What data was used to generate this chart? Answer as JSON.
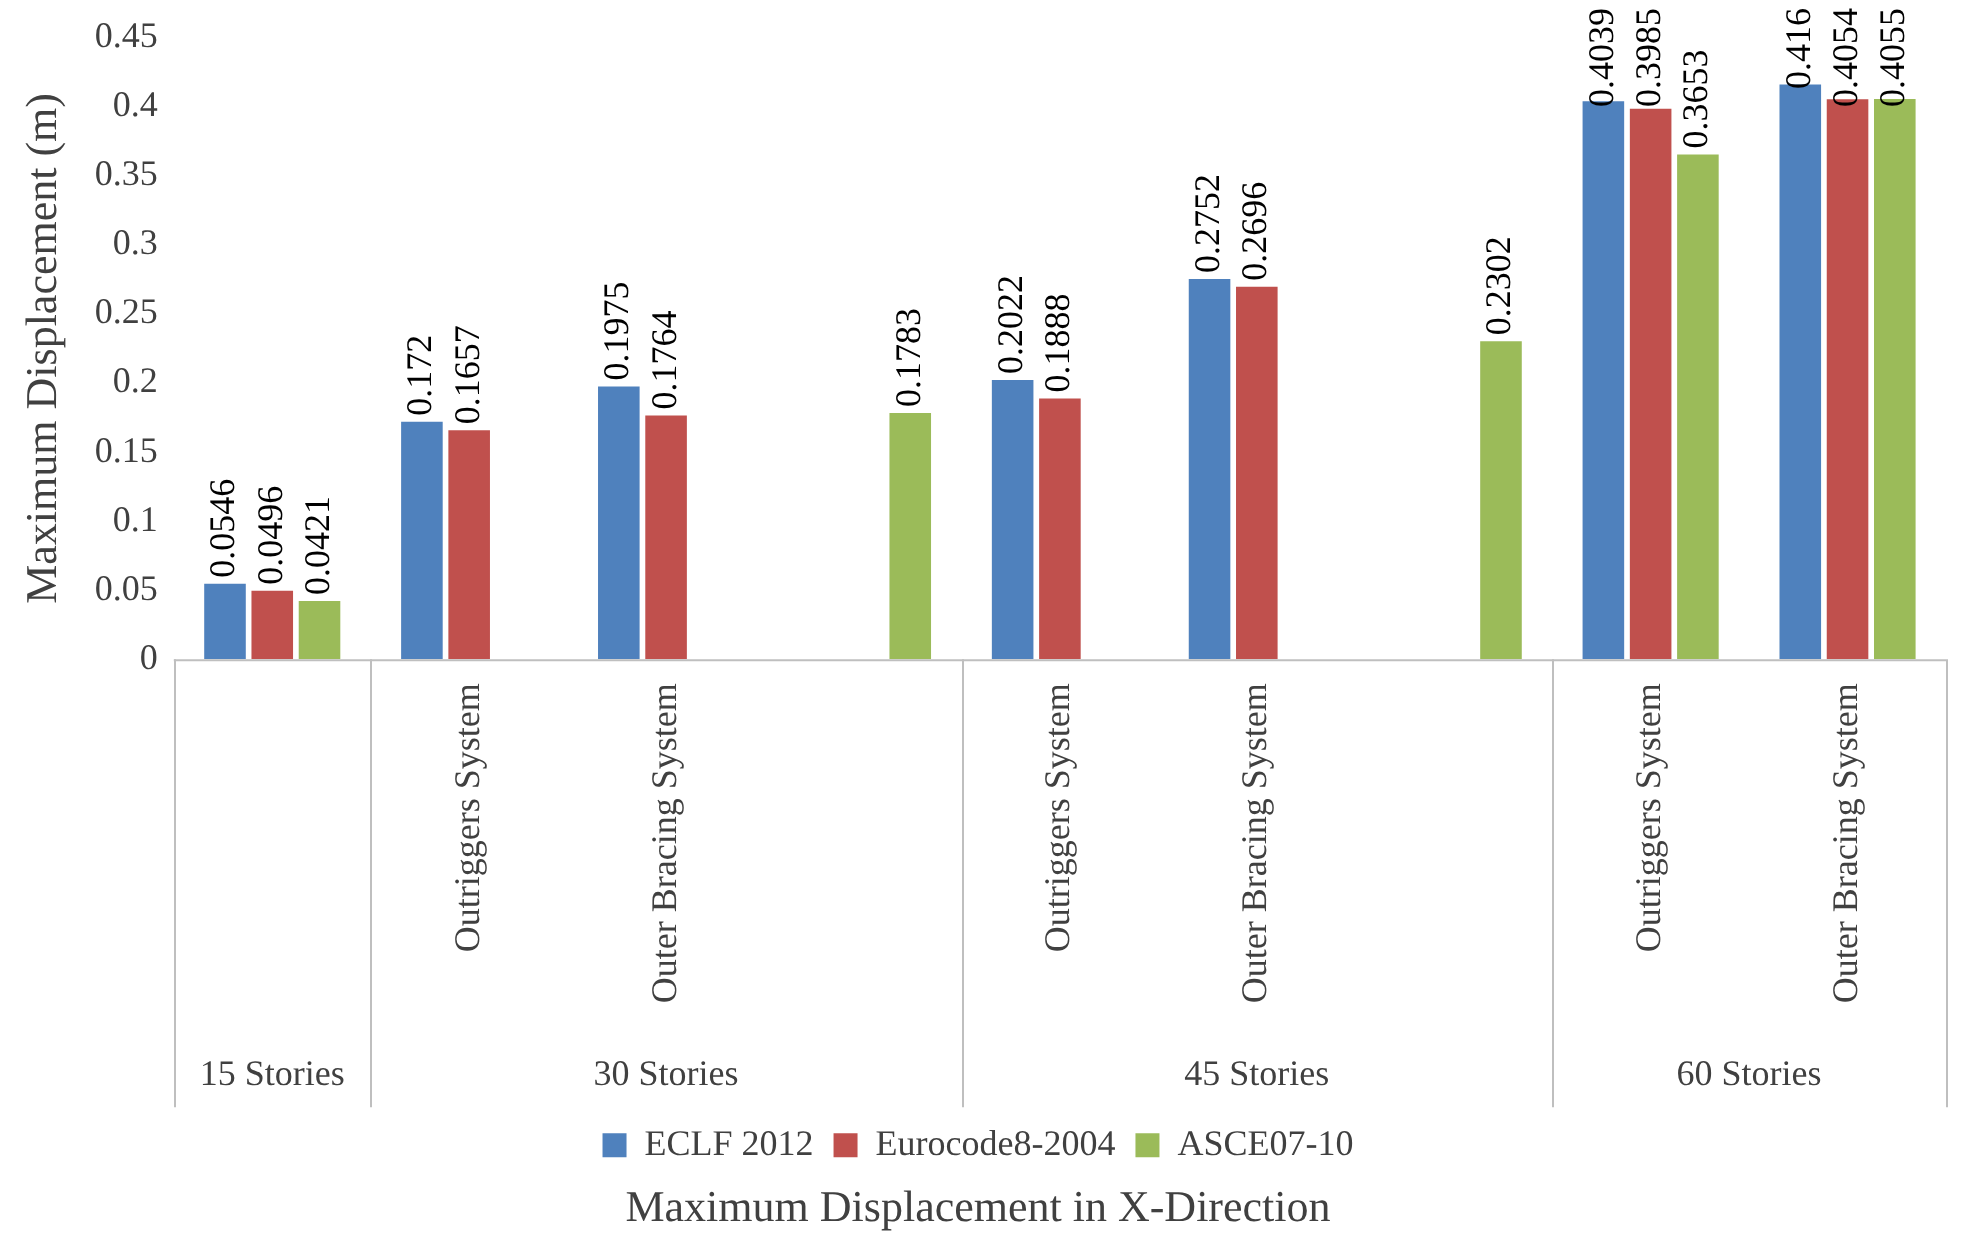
{
  "chart_data": {
    "type": "bar",
    "xlabel": "Maximum Displacement in X-Direction",
    "ylabel": "Maximum Displacement (m)",
    "categories": [
      null,
      "Outriggers System",
      "Outer Bracing System",
      null,
      "Outriggers System",
      "Outer Bracing System",
      null,
      "Outriggers System",
      "Outer Bracing System"
    ],
    "annotations": [
      "15 Stories",
      "30 Stories",
      "45 Stories",
      "60 Stories"
    ],
    "series": [
      {
        "name": "ECLF 2012",
        "color": "#4f81bd",
        "values": [
          0.0546,
          0.172,
          0.1975,
          null,
          0.2022,
          0.2752,
          null,
          0.4039,
          0.416
        ]
      },
      {
        "name": "Eurocode8-2004",
        "color": "#c0504d",
        "values": [
          0.0496,
          0.1657,
          0.1764,
          null,
          0.1888,
          0.2696,
          null,
          0.3985,
          0.4054
        ]
      },
      {
        "name": "ASCE07-10",
        "color": "#9bbb59",
        "values": [
          0.0421,
          null,
          null,
          0.1783,
          null,
          null,
          0.2302,
          0.3653,
          0.4055
        ]
      }
    ],
    "ylim": [
      0,
      0.45
    ],
    "yticks": [
      0,
      0.05,
      0.1,
      0.15,
      0.2,
      0.25,
      0.3,
      0.35,
      0.4,
      0.45
    ],
    "grid": false,
    "legend": "bottom",
    "data_labels": true
  }
}
